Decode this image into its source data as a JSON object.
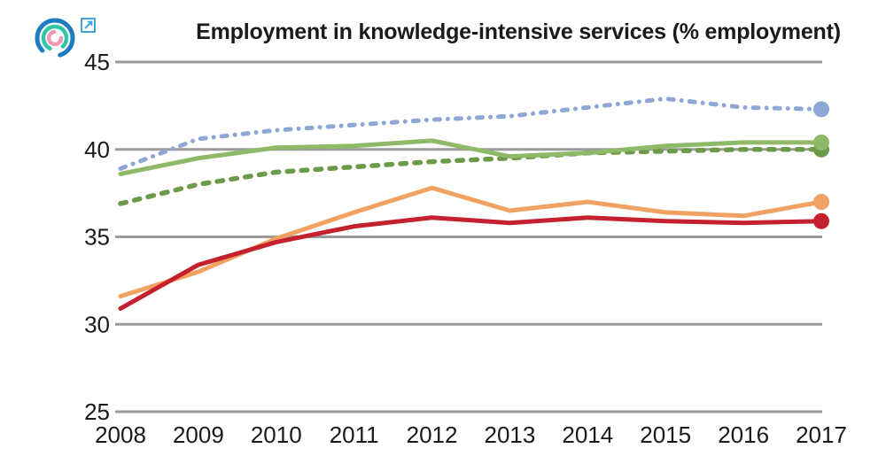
{
  "header": {
    "logo": {
      "name": "concentric-arcs-logo",
      "outer_arc_color": "#1d7dc2",
      "middle_arc_color": "#31c5a4",
      "inner_arc_color": "#f29ab4",
      "link_icon_color": "#3fa6d9"
    }
  },
  "chart_data": {
    "type": "line",
    "title": "Employment in knowledge-intensive services (% employment)",
    "x": [
      2008,
      2009,
      2010,
      2011,
      2012,
      2013,
      2014,
      2015,
      2016,
      2017
    ],
    "xlabel": "",
    "ylabel": "",
    "ylim": [
      25,
      45
    ],
    "yticks": [
      45,
      40,
      35,
      30,
      25
    ],
    "grid": "horizontal-only",
    "legend": "none",
    "axis_color": "#9a9a9a",
    "text_color": "#1a1a1a",
    "series": [
      {
        "id": "blue-dash-dot",
        "style": "dash-dot",
        "color": "#8fa7d4",
        "end_dot": true,
        "values": [
          38.9,
          40.6,
          41.1,
          41.4,
          41.7,
          41.9,
          42.4,
          42.9,
          42.4,
          42.3
        ]
      },
      {
        "id": "green-dashed",
        "style": "dashed",
        "color": "#6d9a48",
        "end_dot": true,
        "values": [
          36.9,
          38.0,
          38.7,
          39.0,
          39.3,
          39.5,
          39.8,
          39.9,
          40.0,
          40.0
        ]
      },
      {
        "id": "green-solid",
        "style": "solid",
        "color": "#8eba68",
        "end_dot": true,
        "values": [
          38.6,
          39.5,
          40.1,
          40.2,
          40.5,
          39.6,
          39.8,
          40.2,
          40.4,
          40.4
        ]
      },
      {
        "id": "orange-solid",
        "style": "solid",
        "color": "#f1a263",
        "end_dot": true,
        "values": [
          31.6,
          33.0,
          34.9,
          36.4,
          37.8,
          36.5,
          37.0,
          36.4,
          36.2,
          37.0
        ]
      },
      {
        "id": "red-solid",
        "style": "solid",
        "color": "#c4202e",
        "end_dot": true,
        "values": [
          30.9,
          33.4,
          34.7,
          35.6,
          36.1,
          35.8,
          36.1,
          35.9,
          35.8,
          35.9
        ]
      }
    ]
  }
}
